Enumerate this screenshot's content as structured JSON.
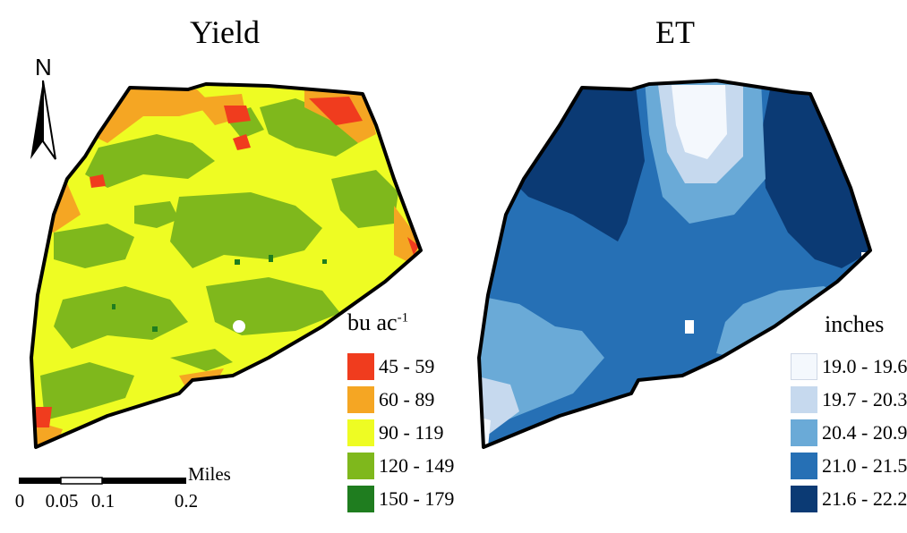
{
  "titles": {
    "yield": "Yield",
    "et": "ET"
  },
  "north_arrow": {
    "label": "N"
  },
  "scale_bar": {
    "unit": "Miles",
    "ticks": [
      "0",
      "0.05",
      "0.1",
      "0.2"
    ]
  },
  "yield_legend": {
    "title": "bu ac",
    "title_superscript": "-1",
    "classes": [
      {
        "label": "45 - 59",
        "color": "#f03c1e"
      },
      {
        "label": "60 - 89",
        "color": "#f5a623"
      },
      {
        "label": "90 - 119",
        "color": "#eefc23"
      },
      {
        "label": "120 - 149",
        "color": "#7fb81c"
      },
      {
        "label": "150 - 179",
        "color": "#1f7d1f"
      }
    ]
  },
  "et_legend": {
    "title": "inches",
    "classes": [
      {
        "label": "19.0 - 19.6",
        "color": "#f4f8fd"
      },
      {
        "label": "19.7 - 20.3",
        "color": "#c6d9ee"
      },
      {
        "label": "20.4 - 20.9",
        "color": "#6aaad7"
      },
      {
        "label": "21.0 - 21.5",
        "color": "#2670b5"
      },
      {
        "label": "21.6 - 22.2",
        "color": "#0b3a74"
      }
    ]
  }
}
